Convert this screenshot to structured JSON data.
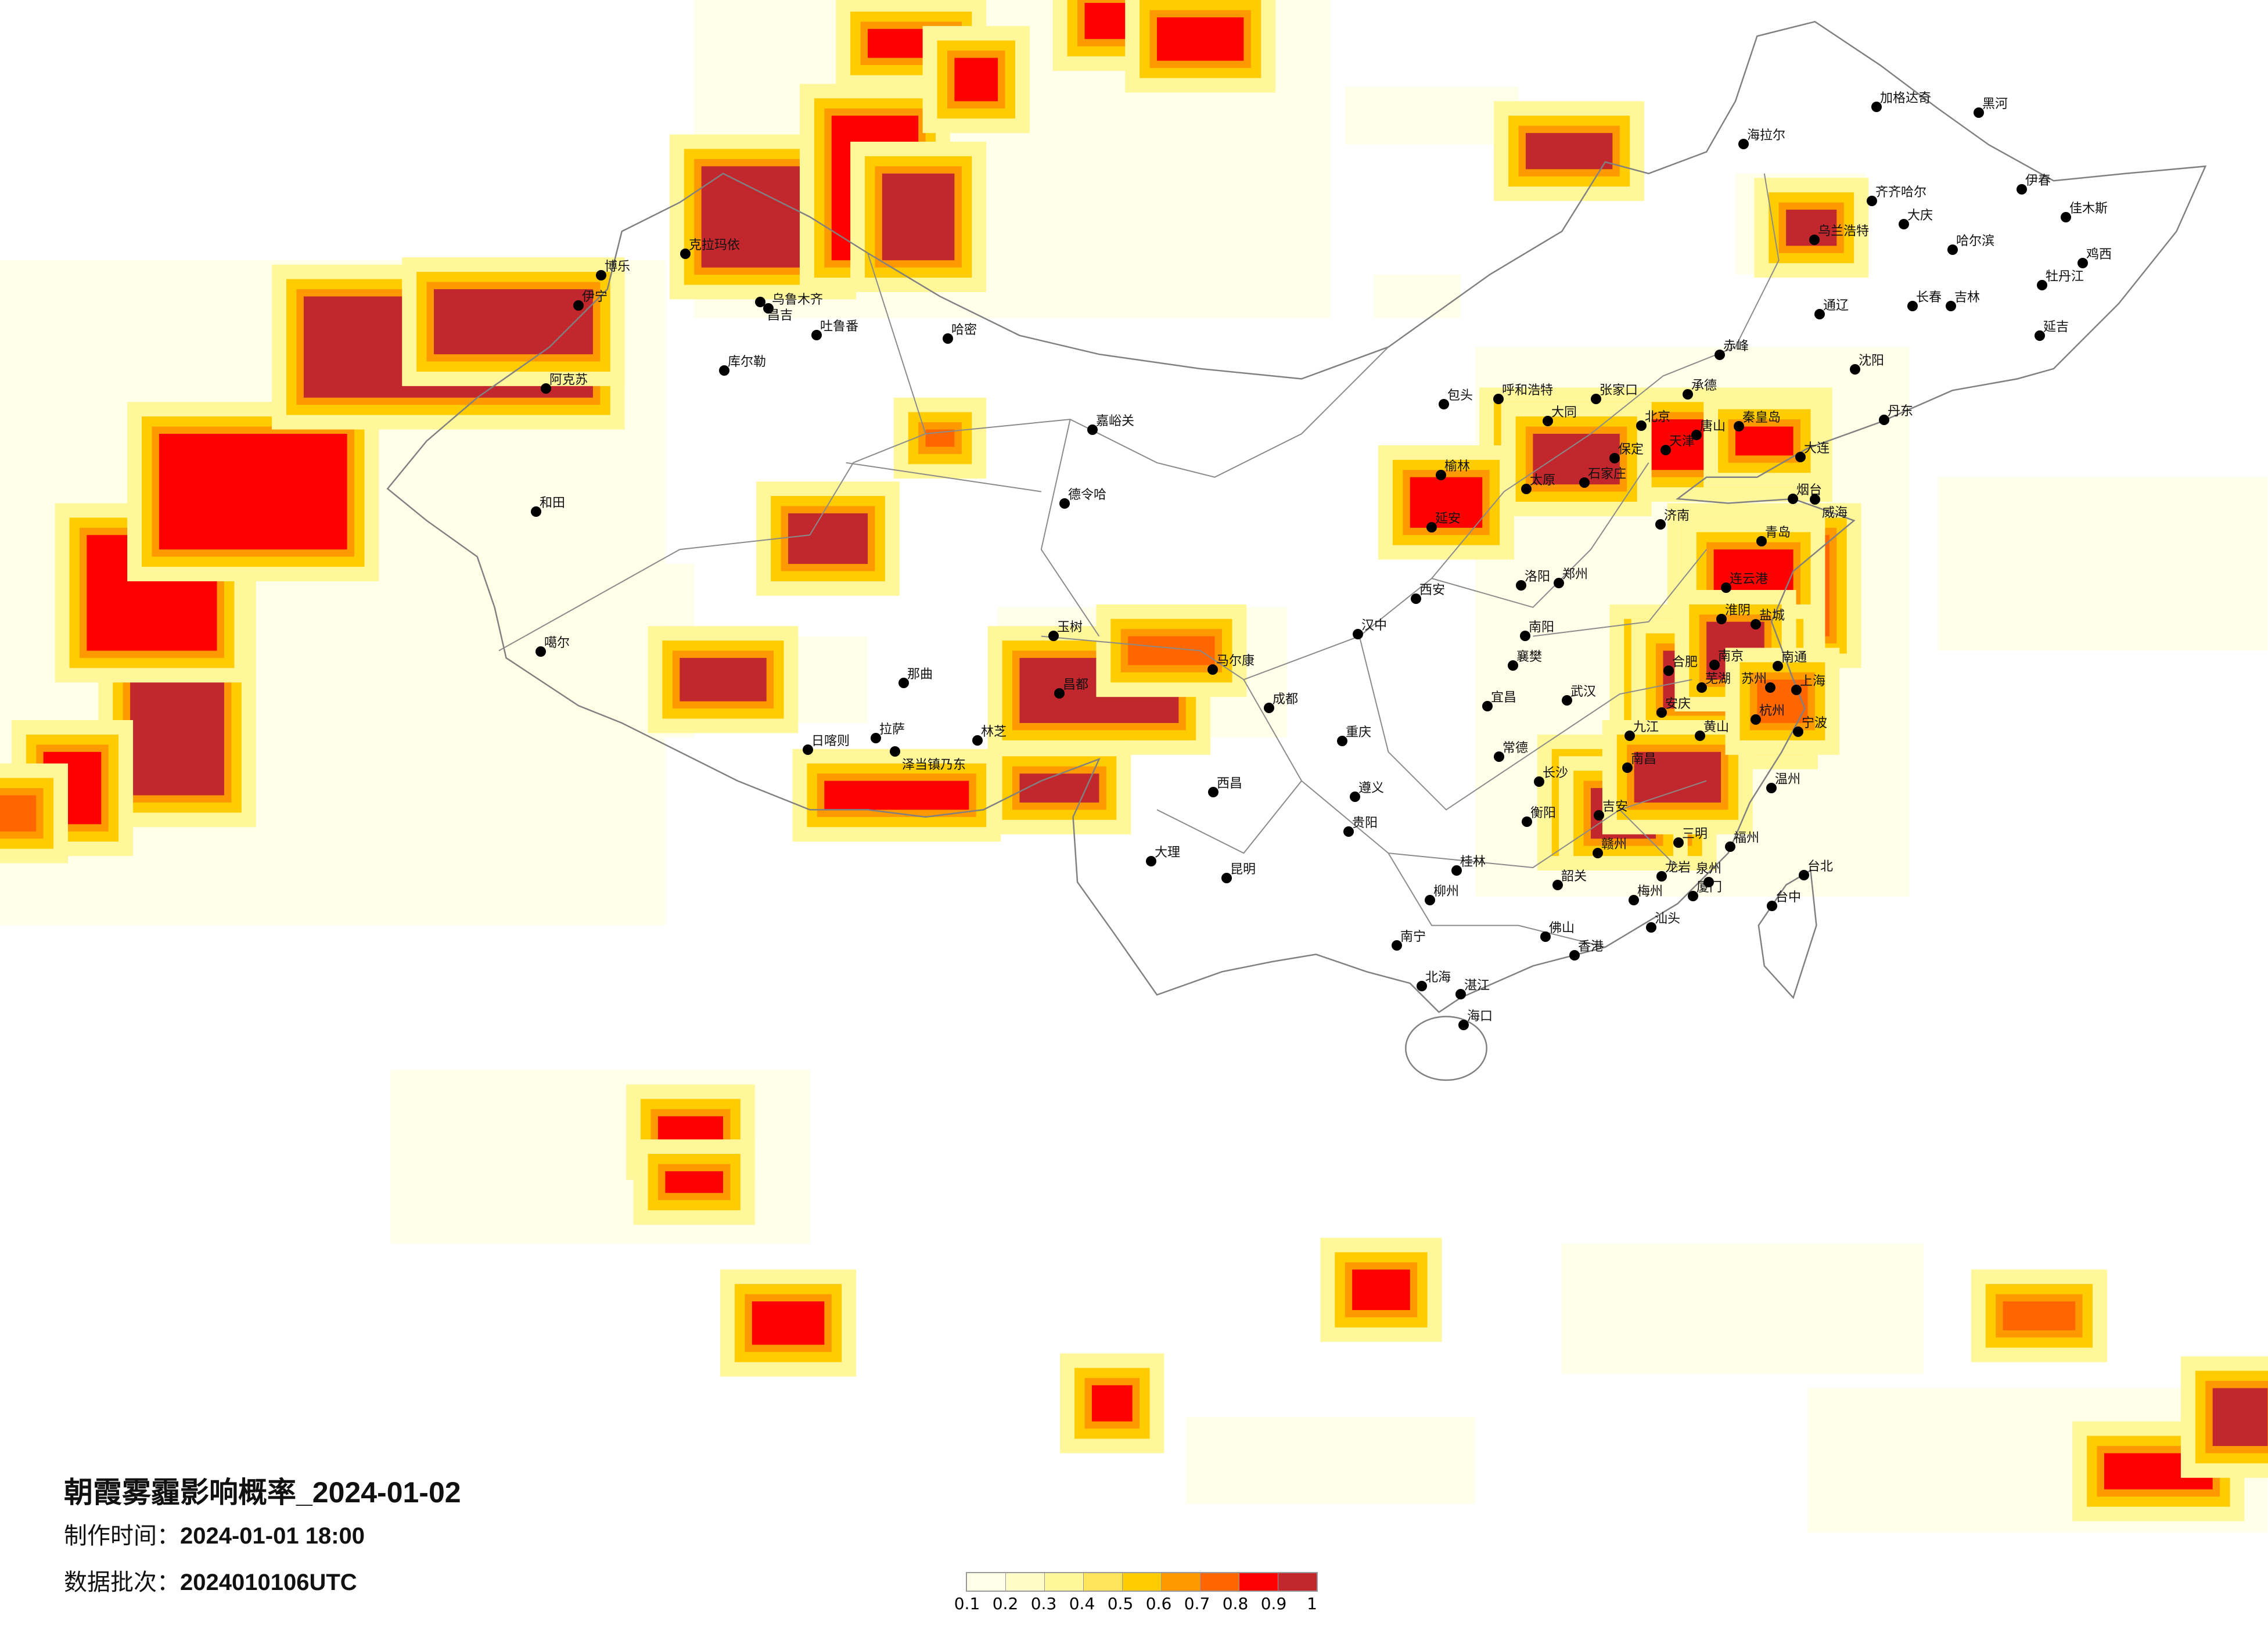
{
  "title": "朝霞雾霾影响概率_2024-01-02",
  "production_time": {
    "label": "制作时间：",
    "value": "2024-01-01 18:00"
  },
  "data_batch": {
    "label": "数据批次：",
    "value": "2024010106UTC"
  },
  "legend": {
    "labels": [
      "0.1",
      "0.2",
      "0.3",
      "0.4",
      "0.5",
      "0.6",
      "0.7",
      "0.8",
      "0.9",
      "1"
    ],
    "colors": [
      "#FFFFE8",
      "#FFFCC8",
      "#FFF799",
      "#FFE55C",
      "#FFCC00",
      "#FF9900",
      "#FF6600",
      "#FF0000",
      "#C1272D"
    ]
  },
  "map": {
    "border_color": "#808080",
    "city_marker_color": "#000000",
    "cities": [
      "北京",
      "天津",
      "石家庄",
      "太原",
      "济南",
      "青岛",
      "郑州",
      "西安",
      "呼和浩特",
      "大同",
      "张家口",
      "承德",
      "唐山",
      "秦皇岛",
      "大连",
      "延安",
      "洛阳",
      "连云港",
      "包头",
      "榆林",
      "保定",
      "烟台",
      "威海",
      "哈尔滨",
      "长春",
      "沈阳",
      "齐齐哈尔",
      "黑河",
      "海拉尔",
      "加格达奇",
      "大庆",
      "吉林",
      "牡丹江",
      "佳木斯",
      "延吉",
      "乌兰浩特",
      "通辽",
      "赤峰",
      "丹东",
      "伊春",
      "鸡西",
      "成都",
      "重庆",
      "贵阳",
      "昆明",
      "南宁",
      "长沙",
      "武汉",
      "桂林",
      "西昌",
      "大理",
      "汉中",
      "宜昌",
      "遵义",
      "柳州",
      "韶关",
      "佛山",
      "湛江",
      "北海",
      "玉树",
      "马尔康",
      "昌都",
      "赣州",
      "吉安",
      "衡阳",
      "常德",
      "襄樊",
      "南阳",
      "香港",
      "伊宁",
      "乌鲁木齐",
      "昌吉",
      "克拉玛依",
      "博乐",
      "吐鲁番",
      "哈密",
      "库尔勒",
      "阿克苏",
      "和田",
      "噶尔",
      "那曲",
      "拉萨",
      "日喀则",
      "林芝",
      "德令哈",
      "嘉峪关",
      "泽当镇乃东",
      "南京",
      "上海",
      "杭州",
      "合肥",
      "南昌",
      "福州",
      "厦门",
      "台北",
      "台中",
      "宁波",
      "温州",
      "苏州",
      "南通",
      "盐城",
      "淮阴",
      "九江",
      "安庆",
      "芜湖",
      "黄山",
      "三明",
      "龙岩",
      "泉州",
      "汕头",
      "梅州",
      "海口"
    ]
  }
}
